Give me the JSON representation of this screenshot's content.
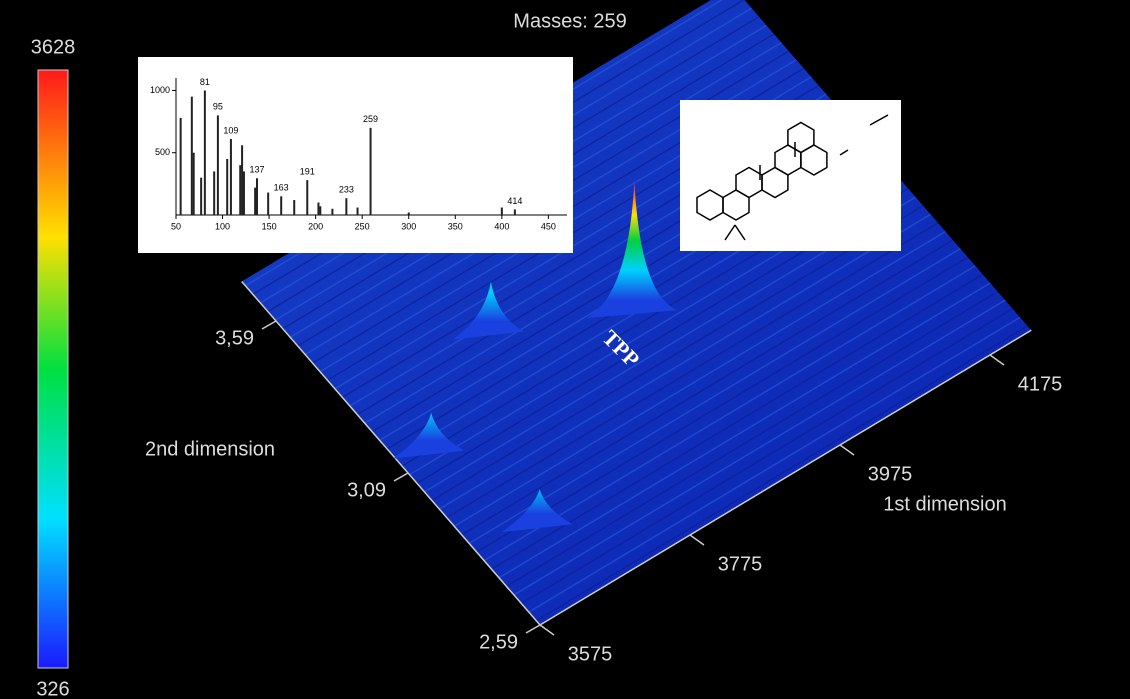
{
  "chart_data": [
    {
      "type": "surface",
      "title": "Masses: 259",
      "xlabel": "1st dimension",
      "ylabel": "2nd dimension",
      "annotation": "TPP",
      "xlim": [
        3575,
        4230
      ],
      "xticks": [
        3575,
        3775,
        3975,
        4175
      ],
      "ylim": [
        2.59,
        3.72
      ],
      "yticks": [
        {
          "value": 2.59,
          "label": "2,59"
        },
        {
          "value": 3.09,
          "label": "3,09"
        },
        {
          "value": 3.59,
          "label": "3,59"
        }
      ],
      "zlim": [
        326,
        3628
      ],
      "zticks": [
        326,
        3628
      ],
      "x": [
        3905,
        3763,
        3620,
        3659
      ],
      "y": [
        3.17,
        3.31,
        3.13,
        2.83
      ],
      "values": [
        3628,
        1437,
        1100,
        1020
      ]
    },
    {
      "type": "spectrum",
      "xlim": [
        50,
        470
      ],
      "xticks": [
        50,
        100,
        150,
        200,
        250,
        300,
        350,
        400,
        450
      ],
      "ylim": [
        0,
        1100
      ],
      "yticks": [
        500,
        1000
      ],
      "series": [
        {
          "labels": true,
          "x": [
            81,
            95,
            109,
            137,
            163,
            191,
            233,
            259,
            414
          ],
          "values": [
            1000,
            800,
            610,
            295,
            150,
            280,
            135,
            700,
            45
          ]
        },
        {
          "labels": false,
          "x": [
            55,
            67,
            69,
            77,
            91,
            105,
            119,
            121,
            123,
            135,
            149,
            177,
            203,
            205,
            218,
            245,
            300,
            400
          ],
          "values": [
            780,
            950,
            500,
            300,
            350,
            450,
            400,
            560,
            350,
            220,
            180,
            120,
            100,
            70,
            50,
            60,
            20,
            60
          ]
        }
      ]
    }
  ]
}
